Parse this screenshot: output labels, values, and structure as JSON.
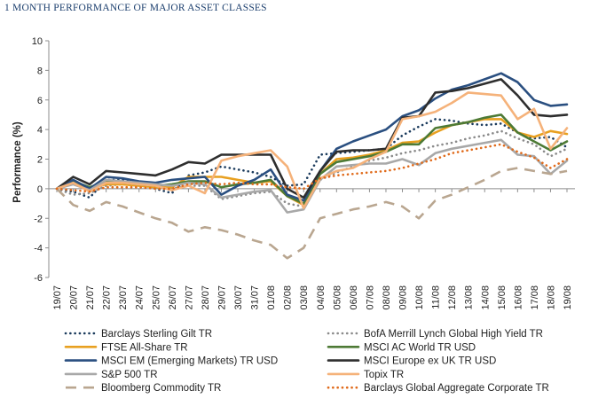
{
  "page_title": "1 MONTH PERFORMANCE OF MAJOR ASSET CLASSES",
  "chart_data": {
    "type": "line",
    "title": "1 MONTH PERFORMANCE OF MAJOR ASSET CLASSES",
    "xlabel": "",
    "ylabel": "Performance (%)",
    "ylim": [
      -6,
      10
    ],
    "yticks": [
      -6,
      -4,
      -2,
      0,
      2,
      4,
      6,
      8,
      10
    ],
    "grid": false,
    "legend_position": "bottom",
    "categories": [
      "19/07",
      "20/07",
      "21/07",
      "22/07",
      "23/07",
      "24/07",
      "25/07",
      "26/07",
      "27/07",
      "28/07",
      "29/07",
      "30/07",
      "31/07",
      "01/08",
      "02/08",
      "03/08",
      "04/08",
      "05/08",
      "06/08",
      "07/08",
      "08/08",
      "09/08",
      "10/08",
      "11/08",
      "12/08",
      "13/08",
      "14/08",
      "15/08",
      "16/08",
      "17/08",
      "18/08",
      "19/08"
    ],
    "series": [
      {
        "name": "Barclays Sterling Gilt TR",
        "color": "#1a3a5c",
        "style": "dotted",
        "values": [
          0,
          -0.2,
          -0.6,
          0.6,
          0.6,
          0.3,
          0,
          -0.3,
          0.9,
          1.1,
          1.5,
          1.3,
          1.1,
          0.8,
          0.2,
          0.3,
          2.3,
          2.4,
          2.5,
          2.6,
          2.7,
          3.6,
          4.2,
          4.7,
          4.6,
          4.4,
          4.3,
          4.4,
          3.8,
          3.4,
          3.5,
          2.8
        ]
      },
      {
        "name": "BofA Merrill Lynch Global High Yield TR",
        "color": "#8a8a8a",
        "style": "dotted",
        "values": [
          0,
          -0.4,
          -0.3,
          0.2,
          0.3,
          0.2,
          0.1,
          0,
          0.2,
          0.2,
          -0.7,
          -0.5,
          -0.3,
          -0.2,
          -1.0,
          -1.2,
          0.6,
          1.1,
          1.5,
          1.9,
          2.1,
          2.4,
          2.6,
          2.9,
          3.1,
          3.4,
          3.6,
          3.9,
          3.4,
          3.0,
          2.2,
          2.7
        ]
      },
      {
        "name": "FTSE All-Share TR",
        "color": "#e8a020",
        "style": "solid",
        "values": [
          0,
          0.5,
          0,
          0.3,
          0.3,
          0.2,
          0.1,
          0.1,
          0.8,
          0.8,
          0.8,
          0.6,
          0.4,
          0.5,
          -0.5,
          -1.1,
          1.0,
          2.0,
          2.1,
          2.3,
          2.6,
          3.1,
          3.2,
          3.8,
          4.3,
          4.5,
          4.7,
          4.7,
          3.8,
          3.5,
          3.9,
          3.7
        ]
      },
      {
        "name": "MSCI AC World TR USD",
        "color": "#4d7a35",
        "style": "solid",
        "values": [
          0,
          0.5,
          0.1,
          0.5,
          0.4,
          0.3,
          0.2,
          0.3,
          0.5,
          0.5,
          0.1,
          0.3,
          0.4,
          0.6,
          -0.5,
          -1.0,
          1.0,
          1.8,
          2.0,
          2.2,
          2.5,
          3.0,
          3.0,
          4.1,
          4.3,
          4.5,
          4.8,
          5.0,
          3.8,
          3.2,
          2.6,
          3.2
        ]
      },
      {
        "name": "MSCI EM (Emerging Markets) TR USD",
        "color": "#2a4f80",
        "style": "solid",
        "values": [
          0,
          0.6,
          0,
          0.8,
          0.7,
          0.5,
          0.4,
          0.6,
          0.7,
          0.8,
          -0.4,
          0.2,
          0.6,
          1.3,
          -0.4,
          -0.8,
          1.2,
          2.7,
          3.2,
          3.6,
          4.0,
          4.9,
          5.3,
          6.1,
          6.7,
          7.0,
          7.4,
          7.8,
          7.2,
          6.0,
          5.6,
          5.7
        ]
      },
      {
        "name": "MSCI Europe ex UK TR USD",
        "color": "#2e2e2e",
        "style": "solid",
        "values": [
          0,
          0.8,
          0.3,
          1.2,
          1.1,
          1.0,
          0.9,
          1.3,
          1.8,
          1.7,
          2.3,
          2.3,
          2.3,
          2.3,
          0,
          -0.6,
          1.2,
          2.5,
          2.6,
          2.6,
          2.7,
          4.8,
          4.9,
          6.5,
          6.6,
          6.8,
          7.1,
          7.4,
          6.3,
          5.0,
          4.9,
          5.0
        ]
      },
      {
        "name": "S&P 500 TR",
        "color": "#a8a8a8",
        "style": "solid",
        "values": [
          0,
          0.3,
          -0.1,
          0.6,
          0.5,
          0.4,
          0.3,
          0.2,
          0.4,
          0.3,
          -0.6,
          -0.4,
          -0.2,
          -0.1,
          -1.6,
          -1.4,
          0.6,
          1.5,
          1.6,
          1.7,
          1.7,
          2.0,
          1.6,
          2.4,
          2.7,
          2.9,
          3.1,
          3.3,
          2.3,
          2.2,
          1.0,
          1.9
        ]
      },
      {
        "name": "Topix TR",
        "color": "#f5b27a",
        "style": "solid",
        "values": [
          0,
          0.4,
          -0.2,
          0.4,
          0.4,
          0.3,
          0.2,
          -0.1,
          0.2,
          -0.3,
          1.9,
          2.2,
          2.4,
          2.6,
          1.5,
          -1.3,
          0.7,
          1.2,
          1.4,
          2.0,
          2.5,
          4.7,
          4.9,
          5.2,
          5.8,
          6.5,
          6.4,
          6.3,
          4.7,
          5.4,
          2.7,
          4.1
        ]
      },
      {
        "name": "Bloomberg Commodity TR",
        "color": "#b9a690",
        "style": "dashed",
        "values": [
          0,
          -1.1,
          -1.5,
          -0.9,
          -1.2,
          -1.6,
          -2.0,
          -2.3,
          -2.9,
          -2.6,
          -2.8,
          -3.1,
          -3.5,
          -3.8,
          -4.7,
          -4.0,
          -2.0,
          -1.7,
          -1.4,
          -1.2,
          -0.9,
          -1.2,
          -2.0,
          -0.8,
          -0.4,
          0.1,
          0.6,
          1.2,
          1.4,
          1.2,
          1.0,
          1.2
        ]
      },
      {
        "name": "Barclays Global Aggregate Corporate TR",
        "color": "#e06a1a",
        "style": "dotted",
        "values": [
          0,
          -0.1,
          -0.2,
          0.1,
          0.1,
          0.1,
          0,
          0,
          0.3,
          0.4,
          0.3,
          0.4,
          0.3,
          0.3,
          0.1,
          0,
          0.7,
          0.9,
          1.0,
          1.1,
          1.2,
          1.4,
          1.7,
          2.0,
          2.4,
          2.6,
          2.8,
          3.0,
          2.5,
          2.1,
          1.4,
          2.0
        ]
      }
    ]
  }
}
